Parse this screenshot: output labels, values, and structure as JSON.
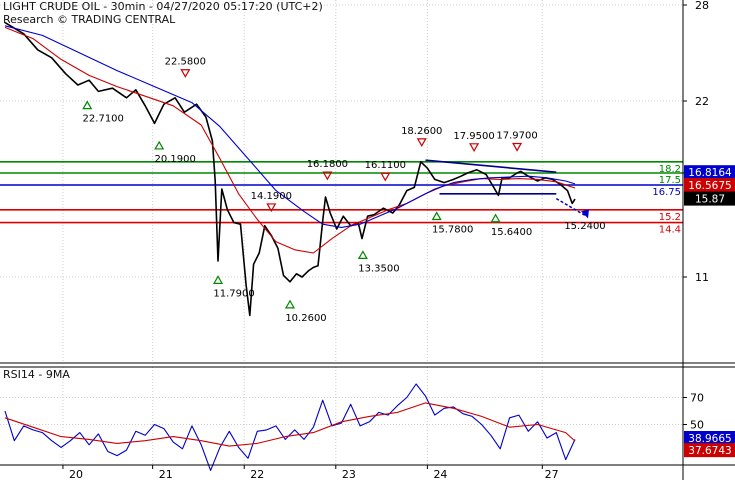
{
  "header": {
    "line1": "LIGHT CRUDE OIL - 30min - 04/27/2020 05:17:20 (UTC+2)",
    "line2": "Research © TRADING CENTRAL"
  },
  "rsi_header": "RSI14 - 9MA",
  "colors": {
    "price": "#000000",
    "ma_fast": "#cc0000",
    "ma_slow": "#0000cc",
    "support": "#dd0000",
    "resistance": "#008800",
    "pivot": "#0000cc",
    "grid": "#cfcfcf",
    "panel_bg": "#ffffff"
  },
  "chart_data": [
    {
      "type": "line",
      "panel": "price",
      "x_axis": {
        "labels": [
          "20",
          "21",
          "22",
          "23",
          "24",
          "27"
        ]
      },
      "y_axis": {
        "ticks": [
          28,
          22,
          17.5,
          11
        ],
        "range": [
          7.4,
          28.5
        ]
      },
      "series": [
        {
          "role": "price",
          "points": [
            [
              19.2,
              26.9
            ],
            [
              19.4,
              26.2
            ],
            [
              19.55,
              25.2
            ],
            [
              19.7,
              24.7
            ],
            [
              19.85,
              23.7
            ],
            [
              19.98,
              23.0
            ],
            [
              20.1,
              23.3
            ],
            [
              20.2,
              22.6
            ],
            [
              20.35,
              22.8
            ],
            [
              20.5,
              22.2
            ],
            [
              20.6,
              22.7
            ],
            [
              20.7,
              21.7
            ],
            [
              20.8,
              20.6
            ],
            [
              20.9,
              21.8
            ],
            [
              21.02,
              22.2
            ],
            [
              21.12,
              21.3
            ],
            [
              21.25,
              21.8
            ],
            [
              21.35,
              21.0
            ],
            [
              21.42,
              19.5
            ],
            [
              21.45,
              17.0
            ],
            [
              21.48,
              12.0
            ],
            [
              21.52,
              16.5
            ],
            [
              21.58,
              15.2
            ],
            [
              21.65,
              14.4
            ],
            [
              21.72,
              14.3
            ],
            [
              21.78,
              10.5
            ],
            [
              21.82,
              8.6
            ],
            [
              21.86,
              11.8
            ],
            [
              21.92,
              12.5
            ],
            [
              21.98,
              14.2
            ],
            [
              22.05,
              13.6
            ],
            [
              22.12,
              12.8
            ],
            [
              22.18,
              11.1
            ],
            [
              22.25,
              10.7
            ],
            [
              22.32,
              11.2
            ],
            [
              22.38,
              11.0
            ],
            [
              22.45,
              11.4
            ],
            [
              22.5,
              11.6
            ],
            [
              22.55,
              11.7
            ],
            [
              22.6,
              14.5
            ],
            [
              22.63,
              16.0
            ],
            [
              22.68,
              15.0
            ],
            [
              22.75,
              14.0
            ],
            [
              22.82,
              14.8
            ],
            [
              22.9,
              14.2
            ],
            [
              22.98,
              14.4
            ],
            [
              23.02,
              13.4
            ],
            [
              23.08,
              14.8
            ],
            [
              23.15,
              14.9
            ],
            [
              23.25,
              15.3
            ],
            [
              23.35,
              15.0
            ],
            [
              23.42,
              15.5
            ],
            [
              23.5,
              16.4
            ],
            [
              23.58,
              16.6
            ],
            [
              23.65,
              18.2
            ],
            [
              23.72,
              17.8
            ],
            [
              23.8,
              17.1
            ],
            [
              23.9,
              16.9
            ],
            [
              24.0,
              17.1
            ],
            [
              24.08,
              17.3
            ],
            [
              24.15,
              17.5
            ],
            [
              24.25,
              17.7
            ],
            [
              24.35,
              17.4
            ],
            [
              24.42,
              16.7
            ],
            [
              24.48,
              16.1
            ],
            [
              24.52,
              17.2
            ],
            [
              24.6,
              17.2
            ],
            [
              24.68,
              17.5
            ],
            [
              24.72,
              17.6
            ],
            [
              24.8,
              17.3
            ],
            [
              24.9,
              17.0
            ],
            [
              24.98,
              17.2
            ],
            [
              25.06,
              17.1
            ],
            [
              25.14,
              16.8
            ],
            [
              25.22,
              16.4
            ],
            [
              25.27,
              15.6
            ],
            [
              25.3,
              15.87
            ]
          ]
        },
        {
          "role": "ma_fast",
          "points": [
            [
              19.2,
              26.6
            ],
            [
              19.5,
              25.9
            ],
            [
              19.8,
              24.6
            ],
            [
              20.1,
              23.6
            ],
            [
              20.4,
              22.9
            ],
            [
              20.7,
              22.3
            ],
            [
              21.0,
              21.7
            ],
            [
              21.3,
              20.5
            ],
            [
              21.5,
              18.4
            ],
            [
              21.7,
              16.2
            ],
            [
              21.9,
              14.6
            ],
            [
              22.1,
              13.2
            ],
            [
              22.3,
              12.7
            ],
            [
              22.5,
              12.5
            ],
            [
              22.7,
              13.4
            ],
            [
              22.9,
              14.2
            ],
            [
              23.1,
              14.7
            ],
            [
              23.3,
              15.2
            ],
            [
              23.5,
              15.6
            ],
            [
              23.7,
              16.2
            ],
            [
              23.9,
              16.7
            ],
            [
              24.1,
              16.95
            ],
            [
              24.3,
              17.15
            ],
            [
              24.5,
              17.1
            ],
            [
              24.7,
              17.15
            ],
            [
              24.9,
              17.1
            ],
            [
              25.1,
              16.95
            ],
            [
              25.3,
              16.56
            ]
          ]
        },
        {
          "role": "ma_slow",
          "points": [
            [
              19.2,
              26.7
            ],
            [
              19.6,
              26.1
            ],
            [
              20.0,
              25.0
            ],
            [
              20.4,
              23.9
            ],
            [
              20.8,
              22.9
            ],
            [
              21.2,
              21.9
            ],
            [
              21.5,
              20.4
            ],
            [
              21.8,
              18.4
            ],
            [
              22.1,
              16.4
            ],
            [
              22.4,
              15.1
            ],
            [
              22.6,
              14.3
            ],
            [
              22.8,
              14.1
            ],
            [
              23.0,
              14.3
            ],
            [
              23.2,
              14.8
            ],
            [
              23.4,
              15.3
            ],
            [
              23.6,
              15.9
            ],
            [
              23.8,
              16.5
            ],
            [
              24.0,
              16.9
            ],
            [
              24.2,
              17.1
            ],
            [
              24.4,
              17.2
            ],
            [
              24.6,
              17.25
            ],
            [
              24.8,
              17.3
            ],
            [
              25.0,
              17.2
            ],
            [
              25.2,
              17.0
            ],
            [
              25.3,
              16.82
            ]
          ]
        }
      ],
      "horizontal_lines": [
        {
          "role": "resistance",
          "value": 18.2,
          "label": "18.2"
        },
        {
          "role": "resistance",
          "value": 17.5,
          "label": "17.5"
        },
        {
          "role": "pivot",
          "value": 16.75,
          "label": "16.75"
        },
        {
          "role": "support",
          "value": 15.2,
          "label": "15.2"
        },
        {
          "role": "support",
          "value": 14.4,
          "label": "14.4"
        }
      ],
      "price_tags": [
        {
          "value": 16.8164,
          "label": "16.8164",
          "color": "#0000cc",
          "y_at": 17.55
        },
        {
          "value": 16.5675,
          "label": "16.5675",
          "color": "#cc0000",
          "y_at": 16.75
        },
        {
          "value": 15.87,
          "label": "15.87",
          "color": "#000000",
          "y_at": 15.9
        }
      ],
      "annotations": [
        {
          "label": "22.7100",
          "x": 20.08,
          "y": 22.71,
          "kind": "low"
        },
        {
          "label": "22.5800",
          "x": 21.13,
          "y": 22.58,
          "kind": "high"
        },
        {
          "label": "20.1900",
          "x": 20.85,
          "y": 20.19,
          "kind": "low"
        },
        {
          "label": "11.7900",
          "x": 21.48,
          "y": 11.79,
          "kind": "low"
        },
        {
          "label": "14.1900",
          "x": 22.05,
          "y": 14.19,
          "kind": "high"
        },
        {
          "label": "10.2600",
          "x": 22.25,
          "y": 10.26,
          "kind": "low"
        },
        {
          "label": "16.1800",
          "x": 22.65,
          "y": 16.18,
          "kind": "high"
        },
        {
          "label": "16.1100",
          "x": 23.27,
          "y": 16.11,
          "kind": "high"
        },
        {
          "label": "13.3500",
          "x": 23.03,
          "y": 13.35,
          "kind": "low"
        },
        {
          "label": "18.2600",
          "x": 23.66,
          "y": 18.26,
          "kind": "high"
        },
        {
          "label": "15.7800",
          "x": 23.82,
          "y": 15.78,
          "kind": "low"
        },
        {
          "label": "17.9500",
          "x": 24.22,
          "y": 17.95,
          "kind": "high"
        },
        {
          "label": "15.6400",
          "x": 24.45,
          "y": 15.64,
          "kind": "low"
        },
        {
          "label": "17.9700",
          "x": 24.68,
          "y": 17.97,
          "kind": "high"
        },
        {
          "label": "15.2400",
          "x": 25.3,
          "y": 15.24,
          "kind": "target"
        }
      ],
      "pattern_lines": [
        {
          "from": [
            23.7,
            18.3
          ],
          "to": [
            25.1,
            17.55
          ]
        },
        {
          "from": [
            23.85,
            16.2
          ],
          "to": [
            25.1,
            16.2
          ]
        }
      ]
    },
    {
      "type": "line",
      "panel": "rsi",
      "y_axis": {
        "ticks": [
          70,
          50
        ],
        "range": [
          10,
          90
        ]
      },
      "series": [
        {
          "role": "rsi",
          "points": [
            [
              19.2,
              60
            ],
            [
              19.3,
              38
            ],
            [
              19.4,
              49
            ],
            [
              19.5,
              46
            ],
            [
              19.6,
              44
            ],
            [
              19.7,
              38
            ],
            [
              19.8,
              33
            ],
            [
              19.9,
              38
            ],
            [
              20.0,
              44
            ],
            [
              20.1,
              35
            ],
            [
              20.2,
              43
            ],
            [
              20.3,
              30
            ],
            [
              20.4,
              27
            ],
            [
              20.5,
              31
            ],
            [
              20.6,
              45
            ],
            [
              20.7,
              42
            ],
            [
              20.8,
              50
            ],
            [
              20.9,
              47
            ],
            [
              21.0,
              37
            ],
            [
              21.1,
              32
            ],
            [
              21.2,
              49
            ],
            [
              21.3,
              35
            ],
            [
              21.4,
              16
            ],
            [
              21.5,
              33
            ],
            [
              21.6,
              45
            ],
            [
              21.7,
              33
            ],
            [
              21.8,
              25
            ],
            [
              21.9,
              45
            ],
            [
              22.0,
              46
            ],
            [
              22.1,
              49
            ],
            [
              22.2,
              39
            ],
            [
              22.3,
              46
            ],
            [
              22.4,
              39
            ],
            [
              22.5,
              48
            ],
            [
              22.6,
              68
            ],
            [
              22.7,
              49
            ],
            [
              22.8,
              51
            ],
            [
              22.9,
              65
            ],
            [
              23.0,
              49
            ],
            [
              23.1,
              52
            ],
            [
              23.2,
              59
            ],
            [
              23.3,
              57
            ],
            [
              23.4,
              64
            ],
            [
              23.5,
              70
            ],
            [
              23.6,
              80
            ],
            [
              23.7,
              71
            ],
            [
              23.8,
              57
            ],
            [
              23.9,
              62
            ],
            [
              24.0,
              63
            ],
            [
              24.1,
              58
            ],
            [
              24.2,
              56
            ],
            [
              24.3,
              50
            ],
            [
              24.4,
              42
            ],
            [
              24.5,
              32
            ],
            [
              24.6,
              55
            ],
            [
              24.7,
              57
            ],
            [
              24.8,
              45
            ],
            [
              24.9,
              52
            ],
            [
              25.0,
              40
            ],
            [
              25.1,
              44
            ],
            [
              25.2,
              24
            ],
            [
              25.3,
              38.97
            ]
          ]
        },
        {
          "role": "rsi_ma",
          "points": [
            [
              19.2,
              55
            ],
            [
              19.5,
              48
            ],
            [
              19.8,
              41
            ],
            [
              20.1,
              39
            ],
            [
              20.4,
              36
            ],
            [
              20.7,
              38
            ],
            [
              21.0,
              41
            ],
            [
              21.3,
              38
            ],
            [
              21.6,
              34
            ],
            [
              21.9,
              36
            ],
            [
              22.2,
              41
            ],
            [
              22.5,
              44
            ],
            [
              22.8,
              52
            ],
            [
              23.1,
              56
            ],
            [
              23.4,
              59
            ],
            [
              23.7,
              66
            ],
            [
              24.0,
              62
            ],
            [
              24.3,
              56
            ],
            [
              24.6,
              48
            ],
            [
              24.9,
              50
            ],
            [
              25.2,
              44
            ],
            [
              25.3,
              37.67
            ]
          ]
        }
      ],
      "price_tags": [
        {
          "value": 38.9665,
          "label": "38.9665",
          "color": "#0000cc",
          "y_at": 40
        },
        {
          "value": 37.6743,
          "label": "37.6743",
          "color": "#cc0000",
          "y_at": 31
        }
      ]
    }
  ]
}
